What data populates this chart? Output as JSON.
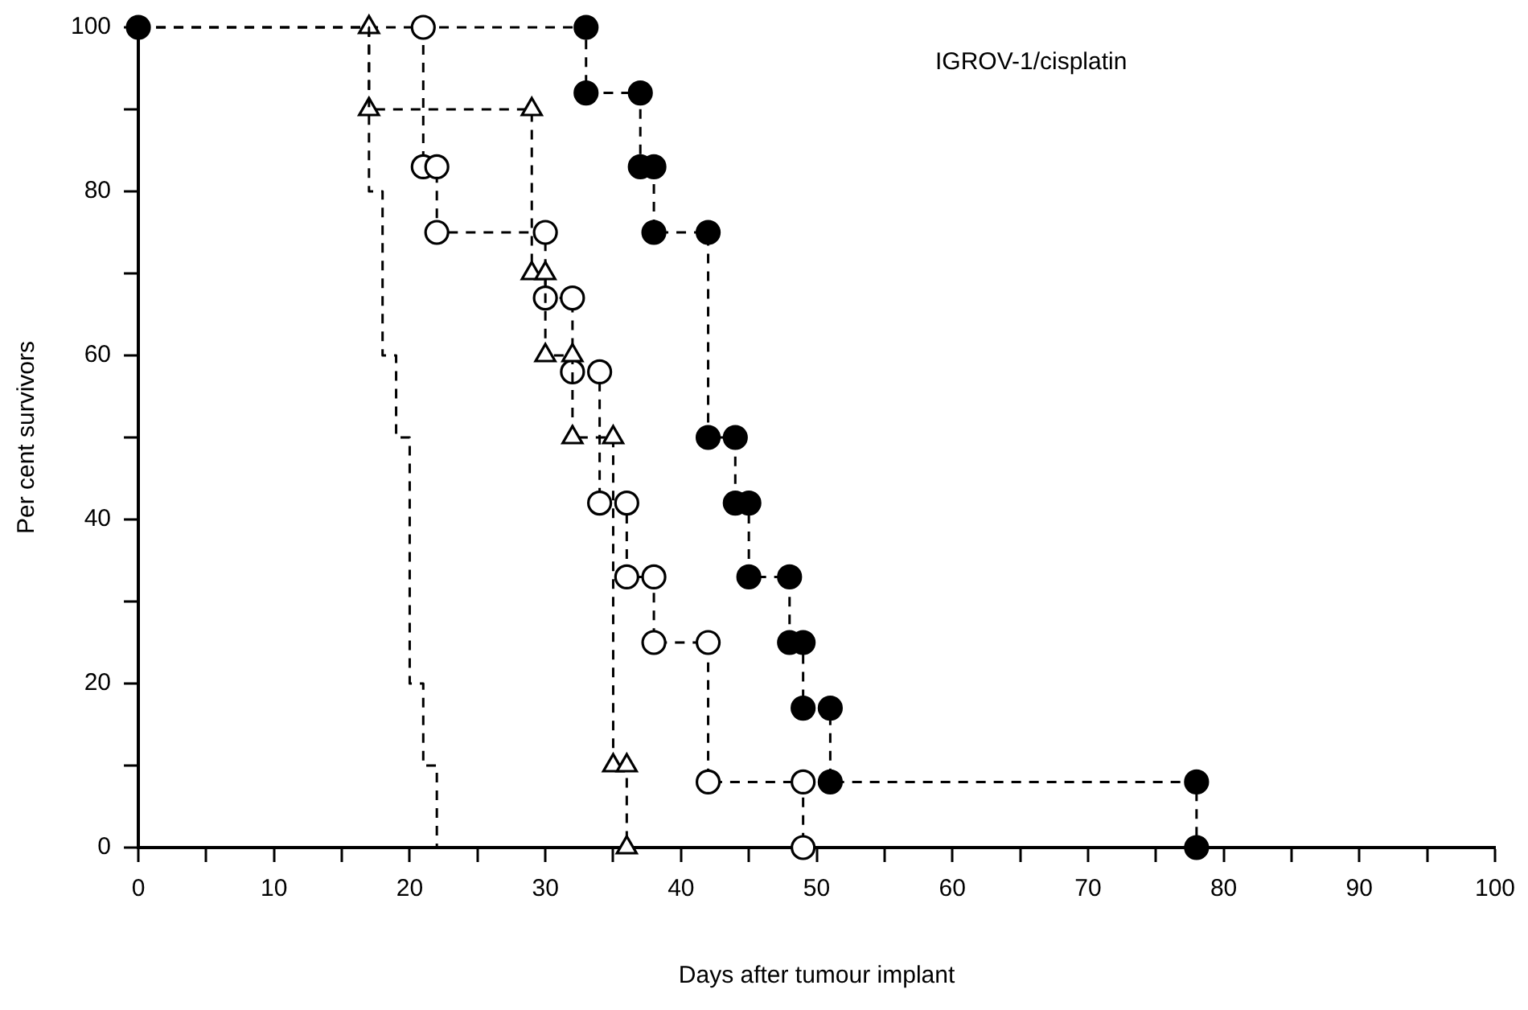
{
  "chart_data": {
    "type": "step",
    "xlabel": "Days after tumour implant",
    "ylabel": "Per cent survivors",
    "annotations": [
      "IGROV-1/cisplatin"
    ],
    "xlim": [
      0,
      100
    ],
    "ylim": [
      0,
      100
    ],
    "xticks": [
      0,
      {
        "value": 5,
        "label": null
      },
      10,
      {
        "value": 15,
        "label": null
      },
      20,
      {
        "value": 25,
        "label": null
      },
      30,
      {
        "value": 35,
        "label": null
      },
      40,
      {
        "value": 45,
        "label": null
      },
      50,
      {
        "value": 55,
        "label": null
      },
      60,
      {
        "value": 65,
        "label": null
      },
      70,
      {
        "value": 75,
        "label": null
      },
      80,
      {
        "value": 85,
        "label": null
      },
      90,
      {
        "value": 95,
        "label": null
      },
      100
    ],
    "yticks": [
      0,
      {
        "value": 10,
        "label": null
      },
      20,
      {
        "value": 30,
        "label": null
      },
      40,
      {
        "value": 50,
        "label": null
      },
      60,
      {
        "value": 70,
        "label": null
      },
      80,
      {
        "value": 90,
        "label": null
      },
      100
    ],
    "grid": false,
    "legend": false,
    "series": [
      {
        "color": "#000000",
        "marker": "none",
        "line_style": "dashed",
        "x": [
          0,
          17,
          18,
          19,
          20,
          21,
          22
        ],
        "values": [
          100,
          80,
          60,
          50,
          20,
          10,
          0
        ]
      },
      {
        "color": "#ffffff",
        "marker": "triangle",
        "line_style": "dashed",
        "x": [
          17,
          17,
          29,
          29,
          30,
          30,
          32,
          32,
          35,
          35,
          36,
          36
        ],
        "values": [
          100,
          90,
          90,
          70,
          70,
          60,
          60,
          50,
          50,
          10,
          10,
          0
        ]
      },
      {
        "color": "#ffffff",
        "marker": "circle",
        "line_style": "dashed",
        "x": [
          21,
          21,
          22,
          22,
          30,
          30,
          32,
          32,
          34,
          34,
          36,
          36,
          38,
          38,
          42,
          42,
          49,
          49
        ],
        "values": [
          100,
          83,
          83,
          75,
          75,
          67,
          67,
          58,
          58,
          42,
          42,
          33,
          33,
          25,
          25,
          8,
          8,
          0
        ]
      },
      {
        "color": "#000000",
        "marker": "circle",
        "line_style": "dashed",
        "x": [
          0,
          33,
          33,
          37,
          37,
          38,
          38,
          42,
          42,
          44,
          44,
          45,
          45,
          48,
          48,
          49,
          49,
          51,
          51,
          78,
          78
        ],
        "values": [
          100,
          100,
          92,
          92,
          83,
          83,
          75,
          75,
          50,
          50,
          42,
          42,
          33,
          33,
          25,
          25,
          17,
          17,
          8,
          8,
          0
        ]
      }
    ]
  }
}
